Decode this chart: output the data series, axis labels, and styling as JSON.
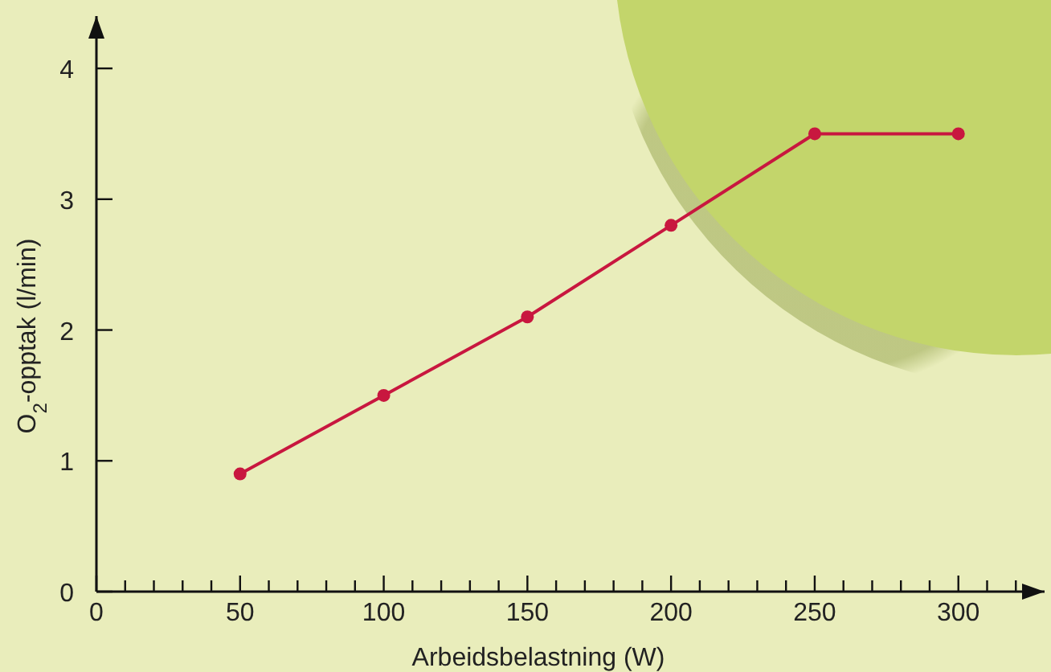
{
  "chart_data": {
    "type": "line",
    "xlabel": "Arbeidsbelastning (W)",
    "ylabel": "O$_{2}$-opptak (l/min)",
    "x": [
      50,
      100,
      150,
      200,
      250,
      300
    ],
    "series": [
      {
        "color": "#c8173f",
        "values": [
          0.9,
          1.5,
          2.1,
          2.8,
          3.5,
          3.5
        ]
      }
    ],
    "xlim": [
      0,
      330
    ],
    "ylim": [
      0,
      4.4
    ],
    "xticks": [
      0,
      {
        "value": 10,
        "label": null
      },
      {
        "value": 20,
        "label": null
      },
      {
        "value": 30,
        "label": null
      },
      {
        "value": 40,
        "label": null
      },
      50,
      {
        "value": 60,
        "label": null
      },
      {
        "value": 70,
        "label": null
      },
      {
        "value": 80,
        "label": null
      },
      {
        "value": 90,
        "label": null
      },
      100,
      {
        "value": 110,
        "label": null
      },
      {
        "value": 120,
        "label": null
      },
      {
        "value": 130,
        "label": null
      },
      {
        "value": 140,
        "label": null
      },
      150,
      {
        "value": 160,
        "label": null
      },
      {
        "value": 170,
        "label": null
      },
      {
        "value": 180,
        "label": null
      },
      {
        "value": 190,
        "label": null
      },
      200,
      {
        "value": 210,
        "label": null
      },
      {
        "value": 220,
        "label": null
      },
      {
        "value": 230,
        "label": null
      },
      {
        "value": 240,
        "label": null
      },
      250,
      {
        "value": 260,
        "label": null
      },
      {
        "value": 270,
        "label": null
      },
      {
        "value": 280,
        "label": null
      },
      {
        "value": 290,
        "label": null
      },
      300,
      {
        "value": 310,
        "label": null
      },
      {
        "value": 320,
        "label": null
      }
    ],
    "yticks": [
      0,
      1,
      2,
      3,
      4
    ],
    "marker": "circle",
    "grid": false
  }
}
